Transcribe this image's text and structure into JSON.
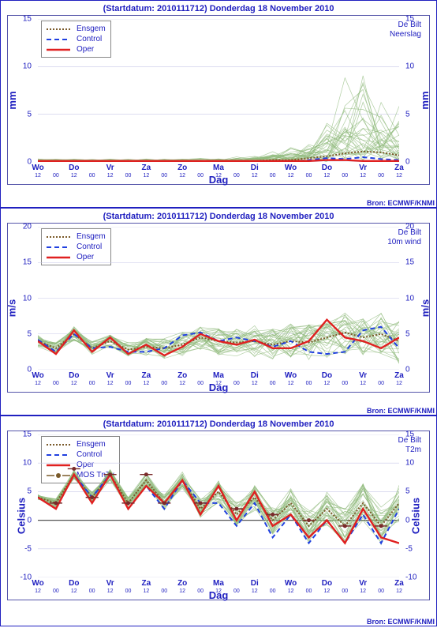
{
  "panels": [
    {
      "title_prefix": "(Startdatum: 2010111712)",
      "title_main": "Donderdag 18 November  2010",
      "location": "De Bilt",
      "variable": "Neerslag",
      "ylabel_left": "mm",
      "ylabel_right": "mm",
      "xlabel": "Dag",
      "source": "Bron: ECMWF/KNMI",
      "legend": [
        {
          "label": "Ensgem",
          "color": "#7a5a2a",
          "dash": "2,2",
          "width": 2
        },
        {
          "label": "Control",
          "color": "#2040e0",
          "dash": "6,4",
          "width": 2
        },
        {
          "label": "Oper",
          "color": "#e02020",
          "dash": "",
          "width": 2.4
        }
      ],
      "ylim": [
        0,
        15
      ],
      "ytick_step": 5,
      "x_days": [
        "Wo",
        "Do",
        "Vr",
        "Za",
        "Zo",
        "Ma",
        "Di",
        "Wo",
        "Do",
        "Vr",
        "Za"
      ],
      "x_minor": [
        "12",
        "00",
        "12",
        "00",
        "12",
        "00",
        "12",
        "00",
        "12",
        "00",
        "12",
        "00",
        "12",
        "00",
        "12",
        "00",
        "12",
        "00",
        "12",
        "00",
        "12"
      ],
      "ensemble_color": "#8fb97a",
      "ensemble_members": 30,
      "ensemble_seed": 11,
      "ensemble_base": "zero_rising",
      "ensgem": [
        0.1,
        0.1,
        0.1,
        0.1,
        0.1,
        0.1,
        0.1,
        0.1,
        0.1,
        0.1,
        0.1,
        0.1,
        0.1,
        0.2,
        0.2,
        0.4,
        0.6,
        0.9,
        1.1,
        1.0,
        0.7
      ],
      "control": [
        0.0,
        0.0,
        0.0,
        0.0,
        0.0,
        0.0,
        0.0,
        0.0,
        0.0,
        0.0,
        0.0,
        0.0,
        0.0,
        0.0,
        0.0,
        0.2,
        0.4,
        0.3,
        0.5,
        0.3,
        0.2
      ],
      "oper": [
        0.1,
        0.1,
        0.1,
        0.1,
        0.1,
        0.1,
        0.1,
        0.1,
        0.1,
        0.1,
        0.1,
        0.1,
        0.1,
        0.1,
        0.1,
        0.1,
        0.2,
        0.2,
        0.1,
        0.1,
        0.1
      ],
      "grid_color": "#c8c8e8",
      "bg": "#ffffff",
      "ens_max_scale": [
        0.3,
        0.3,
        0.3,
        0.3,
        0.3,
        0.3,
        0.3,
        0.3,
        0.3,
        0.4,
        0.5,
        0.6,
        0.8,
        1.5,
        2.5,
        4,
        6,
        10,
        11,
        9,
        8
      ]
    },
    {
      "title_prefix": "(Startdatum: 2010111712)",
      "title_main": "Donderdag 18 November  2010",
      "location": "De Bilt",
      "variable": "10m wind",
      "ylabel_left": "m/s",
      "ylabel_right": "m/s",
      "xlabel": "Dag",
      "source": "Bron: ECMWF/KNMI",
      "legend": [
        {
          "label": "Ensgem",
          "color": "#7a5a2a",
          "dash": "2,2",
          "width": 2
        },
        {
          "label": "Control",
          "color": "#2040e0",
          "dash": "6,4",
          "width": 2
        },
        {
          "label": "Oper",
          "color": "#e02020",
          "dash": "",
          "width": 2.4
        }
      ],
      "ylim": [
        0,
        20
      ],
      "ytick_step": 5,
      "x_days": [
        "Wo",
        "Do",
        "Vr",
        "Za",
        "Zo",
        "Ma",
        "Di",
        "Wo",
        "Do",
        "Vr",
        "Za"
      ],
      "x_minor": [
        "12",
        "00",
        "12",
        "00",
        "12",
        "00",
        "12",
        "00",
        "12",
        "00",
        "12",
        "00",
        "12",
        "00",
        "12",
        "00",
        "12",
        "00",
        "12",
        "00",
        "12"
      ],
      "ensemble_color": "#8fb97a",
      "ensemble_members": 30,
      "ensemble_seed": 22,
      "ensemble_base": "wind",
      "ensgem": [
        4.0,
        3.0,
        5.0,
        3.0,
        4.0,
        2.8,
        3.2,
        3.0,
        3.5,
        4.5,
        4.0,
        3.8,
        4.0,
        3.5,
        4.0,
        3.8,
        4.5,
        5.2,
        4.5,
        5.0,
        4.0
      ],
      "control": [
        4.2,
        2.5,
        5.0,
        3.0,
        3.2,
        2.5,
        2.5,
        3.0,
        4.8,
        5.2,
        4.0,
        4.5,
        4.0,
        3.2,
        4.0,
        2.5,
        2.2,
        2.5,
        5.5,
        6.0,
        3.0
      ],
      "oper": [
        4.0,
        2.2,
        5.5,
        2.5,
        4.5,
        2.2,
        3.5,
        2.0,
        3.2,
        5.0,
        4.0,
        3.5,
        4.2,
        3.0,
        3.0,
        4.0,
        7.0,
        4.5,
        4.0,
        3.0,
        4.5
      ],
      "grid_color": "#c8c8e8",
      "bg": "#ffffff",
      "ens_spread": [
        0.8,
        0.8,
        1.0,
        1.0,
        1.0,
        1.0,
        1.2,
        1.5,
        1.8,
        1.8,
        2.0,
        2.0,
        2.2,
        2.2,
        2.4,
        2.5,
        2.8,
        3.0,
        3.0,
        3.2,
        3.2
      ]
    },
    {
      "title_prefix": "(Startdatum: 2010111712)",
      "title_main": "Donderdag 18 November  2010",
      "location": "De Bilt",
      "variable": "T2m",
      "ylabel_left": "Celsius",
      "ylabel_right": "Celsius",
      "xlabel": "Dag",
      "source": "Bron: ECMWF/KNMI",
      "legend": [
        {
          "label": "Ensgem",
          "color": "#7a5a2a",
          "dash": "2,2",
          "width": 2
        },
        {
          "label": "Control",
          "color": "#2040e0",
          "dash": "6,4",
          "width": 2
        },
        {
          "label": "Oper",
          "color": "#e02020",
          "dash": "",
          "width": 2.4
        },
        {
          "label": "MOS TnTx",
          "color": "#7a5a2a",
          "marker": "circle",
          "width": 0
        }
      ],
      "ylim": [
        -10,
        15
      ],
      "ytick_step": 5,
      "x_days": [
        "Wo",
        "Do",
        "Vr",
        "Za",
        "Zo",
        "Ma",
        "Di",
        "Wo",
        "Do",
        "Vr",
        "Za"
      ],
      "x_minor": [
        "12",
        "00",
        "12",
        "00",
        "12",
        "00",
        "12",
        "00",
        "12",
        "00",
        "12",
        "00",
        "12",
        "00",
        "12",
        "00",
        "12",
        "00",
        "12",
        "00",
        "12"
      ],
      "ensemble_color": "#8fb97a",
      "ensemble_members": 30,
      "ensemble_seed": 33,
      "ensemble_base": "temp",
      "ensgem": [
        4,
        3,
        8,
        4,
        8,
        3,
        7,
        3,
        7,
        2,
        5,
        1,
        4,
        0,
        3,
        -1,
        2,
        -1,
        3,
        -1,
        3
      ],
      "control": [
        4,
        2,
        8,
        4,
        8,
        2,
        6,
        2,
        7,
        3,
        3,
        -1,
        3,
        -3,
        1,
        -4,
        0,
        -4,
        1,
        -4,
        2
      ],
      "oper": [
        4,
        2,
        8,
        3,
        8,
        2,
        6,
        3,
        7,
        1,
        6,
        0,
        5,
        -1,
        1,
        -3,
        0,
        -4,
        2,
        -3,
        -4
      ],
      "mos_tntx": [
        null,
        3,
        9,
        4,
        8,
        3,
        8,
        3,
        null,
        3,
        null,
        2,
        null,
        1,
        null,
        0,
        null,
        -1,
        null,
        -1,
        null
      ],
      "mos_color": "#7a2a2a",
      "grid_color": "#c8c8e8",
      "bg": "#ffffff",
      "zero_line": true,
      "ens_spread": [
        0.5,
        0.8,
        0.8,
        1.0,
        1.0,
        1.2,
        1.2,
        1.5,
        1.5,
        1.8,
        2.0,
        2.2,
        2.4,
        2.6,
        2.8,
        3.0,
        3.0,
        3.2,
        3.4,
        3.5,
        3.5
      ]
    }
  ],
  "colors": {
    "frame": "#2020c0",
    "grid": "#c8c8e8"
  }
}
